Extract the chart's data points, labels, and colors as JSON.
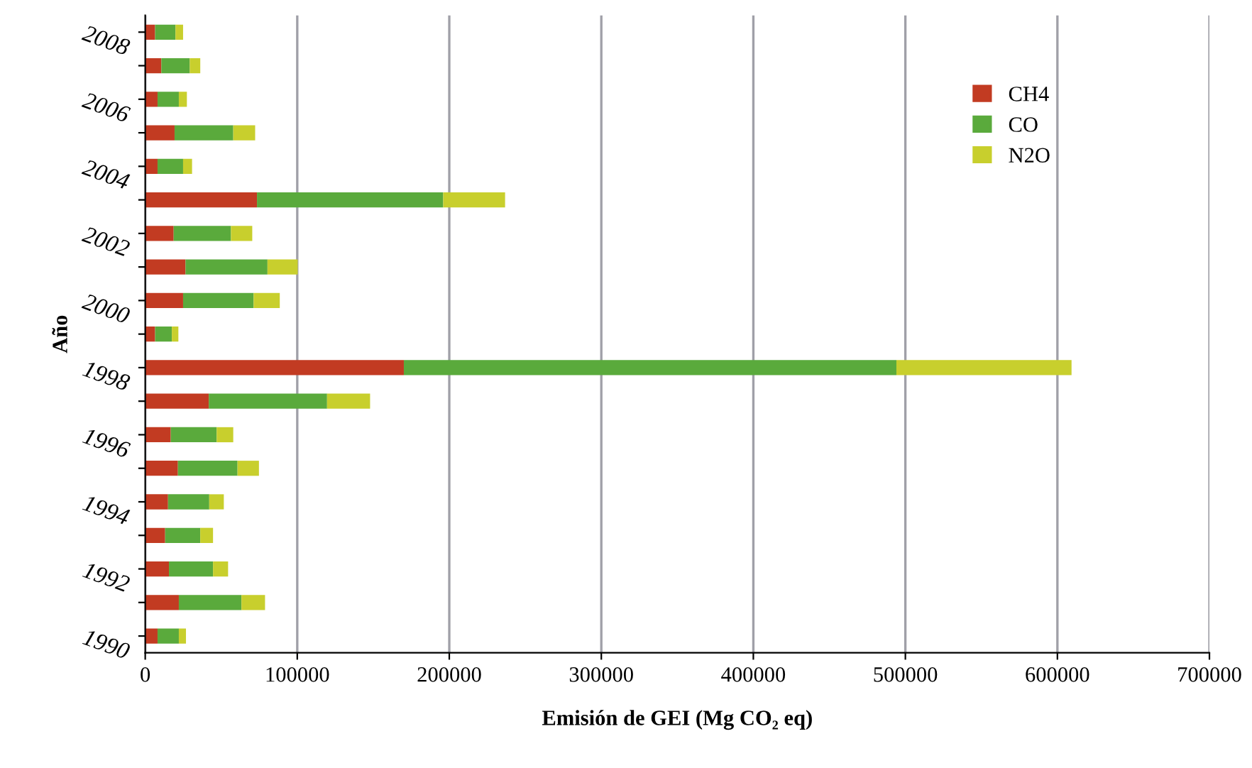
{
  "chart_data": {
    "type": "bar",
    "orientation": "horizontal",
    "stacked": true,
    "xlabel": "Emisión de GEI (Mg CO₂ eq)",
    "ylabel": "Año",
    "categories": [
      "2008",
      null,
      "2006",
      null,
      "2004",
      null,
      "2002",
      null,
      "2000",
      null,
      "1998",
      null,
      "1996",
      null,
      "1994",
      null,
      "1992",
      null,
      "1990"
    ],
    "series": [
      {
        "name": "CH4",
        "color": "#c23b22",
        "values": [
          6500,
          10600,
          8100,
          19300,
          8100,
          73500,
          18700,
          26500,
          24900,
          6500,
          170100,
          41800,
          16800,
          21500,
          15000,
          13100,
          15600,
          22100,
          8100
        ]
      },
      {
        "name": "CO",
        "color": "#5aaa3c",
        "values": [
          13400,
          18700,
          14000,
          38600,
          16800,
          122500,
          37700,
          53900,
          46400,
          11000,
          324000,
          77800,
          30200,
          39200,
          27100,
          23100,
          29000,
          41200,
          14000
        ]
      },
      {
        "name": "N2O",
        "color": "#c8cf2d",
        "values": [
          5000,
          6900,
          5300,
          14400,
          5900,
          40700,
          14000,
          19900,
          17200,
          4300,
          115200,
          28300,
          10900,
          14100,
          9600,
          8400,
          9900,
          15500,
          4700
        ]
      }
    ],
    "xlim": [
      0,
      700000
    ],
    "xticks": [
      0,
      100000,
      200000,
      300000,
      400000,
      500000,
      600000,
      700000
    ],
    "grid": "x",
    "legend": "top right"
  }
}
